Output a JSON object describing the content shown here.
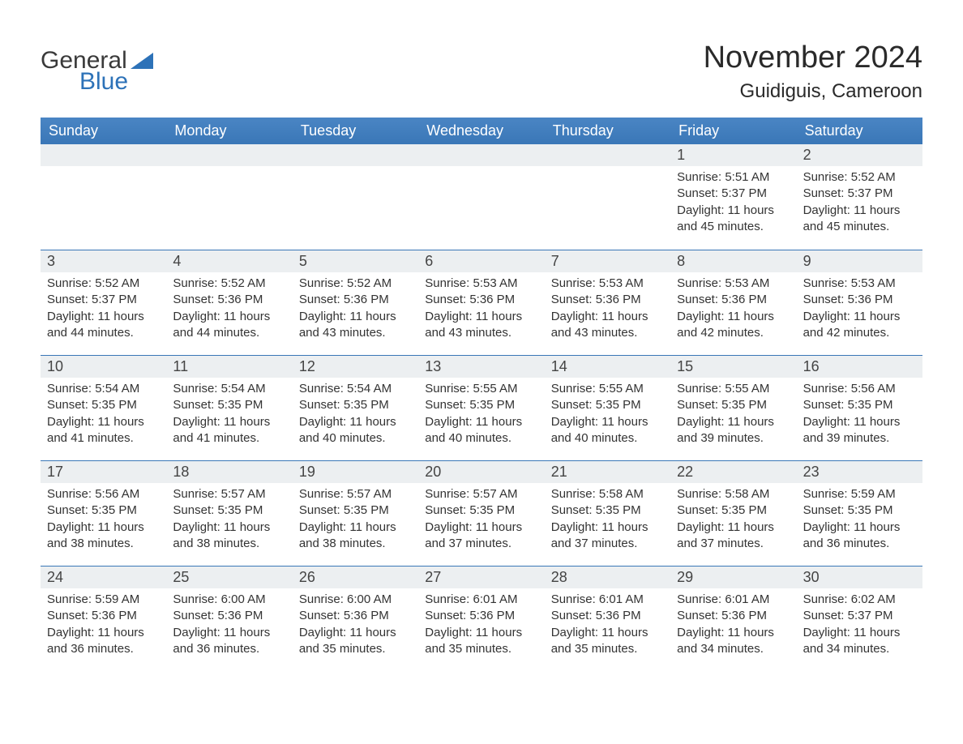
{
  "logo": {
    "text1": "General",
    "text2": "Blue",
    "icon_color": "#2d72b8"
  },
  "header": {
    "month_title": "November 2024",
    "location": "Guidiguis, Cameroon"
  },
  "style": {
    "header_bg": "#3a77b7",
    "header_text": "#ffffff",
    "daynum_bg": "#eceff1",
    "row_border": "#3a77b7",
    "body_text": "#333333",
    "title_text": "#2a2a2a",
    "font_family": "Arial",
    "title_fontsize": 38,
    "location_fontsize": 24,
    "weekday_fontsize": 18,
    "daynum_fontsize": 18,
    "detail_fontsize": 15
  },
  "calendar": {
    "type": "table",
    "weekdays": [
      "Sunday",
      "Monday",
      "Tuesday",
      "Wednesday",
      "Thursday",
      "Friday",
      "Saturday"
    ],
    "weeks": [
      [
        null,
        null,
        null,
        null,
        null,
        {
          "n": "1",
          "sunrise": "5:51 AM",
          "sunset": "5:37 PM",
          "daylight": "11 hours and 45 minutes."
        },
        {
          "n": "2",
          "sunrise": "5:52 AM",
          "sunset": "5:37 PM",
          "daylight": "11 hours and 45 minutes."
        }
      ],
      [
        {
          "n": "3",
          "sunrise": "5:52 AM",
          "sunset": "5:37 PM",
          "daylight": "11 hours and 44 minutes."
        },
        {
          "n": "4",
          "sunrise": "5:52 AM",
          "sunset": "5:36 PM",
          "daylight": "11 hours and 44 minutes."
        },
        {
          "n": "5",
          "sunrise": "5:52 AM",
          "sunset": "5:36 PM",
          "daylight": "11 hours and 43 minutes."
        },
        {
          "n": "6",
          "sunrise": "5:53 AM",
          "sunset": "5:36 PM",
          "daylight": "11 hours and 43 minutes."
        },
        {
          "n": "7",
          "sunrise": "5:53 AM",
          "sunset": "5:36 PM",
          "daylight": "11 hours and 43 minutes."
        },
        {
          "n": "8",
          "sunrise": "5:53 AM",
          "sunset": "5:36 PM",
          "daylight": "11 hours and 42 minutes."
        },
        {
          "n": "9",
          "sunrise": "5:53 AM",
          "sunset": "5:36 PM",
          "daylight": "11 hours and 42 minutes."
        }
      ],
      [
        {
          "n": "10",
          "sunrise": "5:54 AM",
          "sunset": "5:35 PM",
          "daylight": "11 hours and 41 minutes."
        },
        {
          "n": "11",
          "sunrise": "5:54 AM",
          "sunset": "5:35 PM",
          "daylight": "11 hours and 41 minutes."
        },
        {
          "n": "12",
          "sunrise": "5:54 AM",
          "sunset": "5:35 PM",
          "daylight": "11 hours and 40 minutes."
        },
        {
          "n": "13",
          "sunrise": "5:55 AM",
          "sunset": "5:35 PM",
          "daylight": "11 hours and 40 minutes."
        },
        {
          "n": "14",
          "sunrise": "5:55 AM",
          "sunset": "5:35 PM",
          "daylight": "11 hours and 40 minutes."
        },
        {
          "n": "15",
          "sunrise": "5:55 AM",
          "sunset": "5:35 PM",
          "daylight": "11 hours and 39 minutes."
        },
        {
          "n": "16",
          "sunrise": "5:56 AM",
          "sunset": "5:35 PM",
          "daylight": "11 hours and 39 minutes."
        }
      ],
      [
        {
          "n": "17",
          "sunrise": "5:56 AM",
          "sunset": "5:35 PM",
          "daylight": "11 hours and 38 minutes."
        },
        {
          "n": "18",
          "sunrise": "5:57 AM",
          "sunset": "5:35 PM",
          "daylight": "11 hours and 38 minutes."
        },
        {
          "n": "19",
          "sunrise": "5:57 AM",
          "sunset": "5:35 PM",
          "daylight": "11 hours and 38 minutes."
        },
        {
          "n": "20",
          "sunrise": "5:57 AM",
          "sunset": "5:35 PM",
          "daylight": "11 hours and 37 minutes."
        },
        {
          "n": "21",
          "sunrise": "5:58 AM",
          "sunset": "5:35 PM",
          "daylight": "11 hours and 37 minutes."
        },
        {
          "n": "22",
          "sunrise": "5:58 AM",
          "sunset": "5:35 PM",
          "daylight": "11 hours and 37 minutes."
        },
        {
          "n": "23",
          "sunrise": "5:59 AM",
          "sunset": "5:35 PM",
          "daylight": "11 hours and 36 minutes."
        }
      ],
      [
        {
          "n": "24",
          "sunrise": "5:59 AM",
          "sunset": "5:36 PM",
          "daylight": "11 hours and 36 minutes."
        },
        {
          "n": "25",
          "sunrise": "6:00 AM",
          "sunset": "5:36 PM",
          "daylight": "11 hours and 36 minutes."
        },
        {
          "n": "26",
          "sunrise": "6:00 AM",
          "sunset": "5:36 PM",
          "daylight": "11 hours and 35 minutes."
        },
        {
          "n": "27",
          "sunrise": "6:01 AM",
          "sunset": "5:36 PM",
          "daylight": "11 hours and 35 minutes."
        },
        {
          "n": "28",
          "sunrise": "6:01 AM",
          "sunset": "5:36 PM",
          "daylight": "11 hours and 35 minutes."
        },
        {
          "n": "29",
          "sunrise": "6:01 AM",
          "sunset": "5:36 PM",
          "daylight": "11 hours and 34 minutes."
        },
        {
          "n": "30",
          "sunrise": "6:02 AM",
          "sunset": "5:37 PM",
          "daylight": "11 hours and 34 minutes."
        }
      ]
    ],
    "labels": {
      "sunrise": "Sunrise: ",
      "sunset": "Sunset: ",
      "daylight": "Daylight: "
    }
  }
}
